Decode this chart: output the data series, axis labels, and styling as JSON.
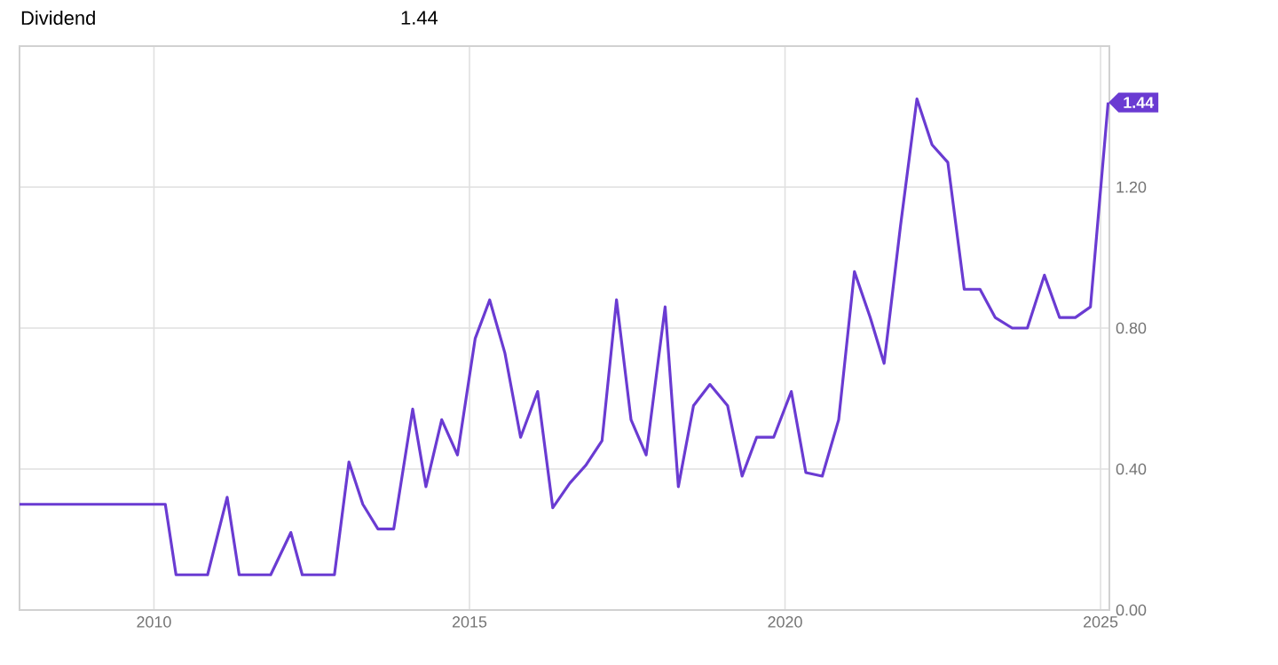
{
  "chart_data": {
    "type": "line",
    "title": "Dividend",
    "x": [
      2007.87,
      2010.18,
      2010.35,
      2010.85,
      2011.16,
      2011.35,
      2011.85,
      2012.17,
      2012.35,
      2012.86,
      2013.09,
      2013.31,
      2013.55,
      2013.8,
      2014.1,
      2014.31,
      2014.56,
      2014.81,
      2015.09,
      2015.32,
      2015.56,
      2015.81,
      2016.08,
      2016.32,
      2016.59,
      2016.84,
      2017.1,
      2017.33,
      2017.56,
      2017.8,
      2018.1,
      2018.31,
      2018.55,
      2018.81,
      2019.09,
      2019.32,
      2019.55,
      2019.82,
      2020.1,
      2020.33,
      2020.59,
      2020.85,
      2021.1,
      2021.35,
      2021.57,
      2021.83,
      2022.09,
      2022.33,
      2022.58,
      2022.84,
      2023.09,
      2023.33,
      2023.6,
      2023.84,
      2024.11,
      2024.35,
      2024.6,
      2024.84,
      2025.12
    ],
    "series": [
      {
        "color": "#6a3bd2",
        "values": [
          0.3,
          0.3,
          0.1,
          0.1,
          0.32,
          0.1,
          0.1,
          0.22,
          0.1,
          0.1,
          0.42,
          0.3,
          0.23,
          0.23,
          0.57,
          0.35,
          0.54,
          0.44,
          0.77,
          0.88,
          0.73,
          0.49,
          0.62,
          0.29,
          0.36,
          0.41,
          0.48,
          0.88,
          0.54,
          0.44,
          0.86,
          0.35,
          0.58,
          0.64,
          0.58,
          0.38,
          0.49,
          0.49,
          0.62,
          0.39,
          0.38,
          0.54,
          0.96,
          0.83,
          0.7,
          1.09,
          1.45,
          1.32,
          1.27,
          0.91,
          0.91,
          0.83,
          0.8,
          0.8,
          0.95,
          0.83,
          0.83,
          0.86,
          1.44
        ]
      }
    ],
    "xlim": [
      2007.87,
      2025.14
    ],
    "xticks": [
      2010,
      2015,
      2020,
      2025
    ],
    "ylim": [
      0,
      1.6
    ],
    "yticks": [
      {
        "value": 0,
        "label": "0.00"
      },
      {
        "value": 0.4,
        "label": "0.40"
      },
      {
        "value": 0.8,
        "label": "0.80"
      },
      {
        "value": 1.2,
        "label": "1.20"
      }
    ],
    "grid": true,
    "marker": "none",
    "line_style": "solid",
    "annotations": [
      "1.44",
      {
        "text": "1.44",
        "x": 2025.12,
        "y": 1.44
      }
    ]
  }
}
